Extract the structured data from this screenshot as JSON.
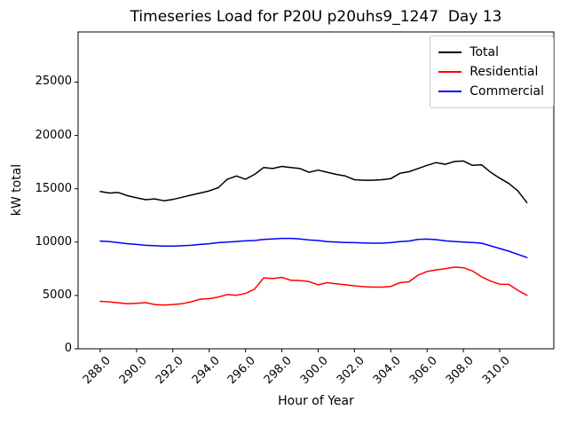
{
  "figure": {
    "background": "#ffffff"
  },
  "legend_title_note": "",
  "chart_data": {
    "type": "line",
    "title": "Timeseries Load for P20U p20uhs9_1247  Day 13",
    "xlabel": "Hour of Year",
    "ylabel": "kW total",
    "xlim": [
      286.78,
      312.98
    ],
    "ylim": [
      0,
      29700
    ],
    "grid": false,
    "legend_position": "upper-right",
    "x_tick_rotation": 45,
    "x_ticks": [
      288,
      290,
      292,
      294,
      296,
      298,
      300,
      302,
      304,
      306,
      308,
      310
    ],
    "x_tick_labels": [
      "288.0",
      "290.0",
      "292.0",
      "294.0",
      "296.0",
      "298.0",
      "300.0",
      "302.0",
      "304.0",
      "306.0",
      "308.0",
      "310.0"
    ],
    "y_ticks": [
      0,
      5000,
      10000,
      15000,
      20000,
      25000
    ],
    "y_tick_labels": [
      "0",
      "5000",
      "10000",
      "15000",
      "20000",
      "25000"
    ],
    "x": [
      288.0,
      288.5,
      289.0,
      289.5,
      290.0,
      290.5,
      291.0,
      291.5,
      292.0,
      292.5,
      293.0,
      293.5,
      294.0,
      294.5,
      295.0,
      295.5,
      296.0,
      296.5,
      297.0,
      297.5,
      298.0,
      298.5,
      299.0,
      299.5,
      300.0,
      300.5,
      301.0,
      301.5,
      302.0,
      302.5,
      303.0,
      303.5,
      304.0,
      304.5,
      305.0,
      305.5,
      306.0,
      306.5,
      307.0,
      307.5,
      308.0,
      308.5,
      309.0,
      309.5,
      310.0,
      310.5,
      311.0,
      311.5
    ],
    "series": [
      {
        "name": "Total",
        "color": "#000000",
        "values": [
          14750,
          14600,
          14650,
          14350,
          14150,
          13980,
          14050,
          13880,
          14000,
          14200,
          14400,
          14600,
          14800,
          15100,
          15900,
          16200,
          15900,
          16350,
          17000,
          16900,
          17100,
          17000,
          16900,
          16550,
          16750,
          16550,
          16350,
          16200,
          15850,
          15800,
          15800,
          15850,
          15950,
          16450,
          16600,
          16900,
          17200,
          17450,
          17300,
          17550,
          17600,
          17200,
          17250,
          16550,
          16000,
          15500,
          14800,
          13700
        ]
      },
      {
        "name": "Residential",
        "color": "#ff0000",
        "values": [
          4450,
          4400,
          4320,
          4220,
          4260,
          4330,
          4150,
          4100,
          4150,
          4230,
          4400,
          4650,
          4700,
          4850,
          5080,
          5020,
          5180,
          5600,
          6650,
          6580,
          6700,
          6420,
          6400,
          6300,
          6000,
          6200,
          6100,
          6000,
          5900,
          5820,
          5780,
          5780,
          5840,
          6200,
          6280,
          6900,
          7250,
          7400,
          7500,
          7650,
          7600,
          7300,
          6750,
          6350,
          6060,
          6040,
          5480,
          5020
        ]
      },
      {
        "name": "Commercial",
        "color": "#0000ff",
        "values": [
          10100,
          10050,
          9950,
          9850,
          9780,
          9700,
          9660,
          9630,
          9630,
          9660,
          9700,
          9780,
          9850,
          9950,
          10000,
          10060,
          10120,
          10150,
          10250,
          10300,
          10350,
          10350,
          10300,
          10200,
          10150,
          10050,
          10000,
          9970,
          9950,
          9920,
          9900,
          9900,
          9950,
          10050,
          10100,
          10250,
          10280,
          10230,
          10120,
          10060,
          10000,
          9960,
          9900,
          9650,
          9400,
          9150,
          8850,
          8550
        ]
      }
    ]
  }
}
